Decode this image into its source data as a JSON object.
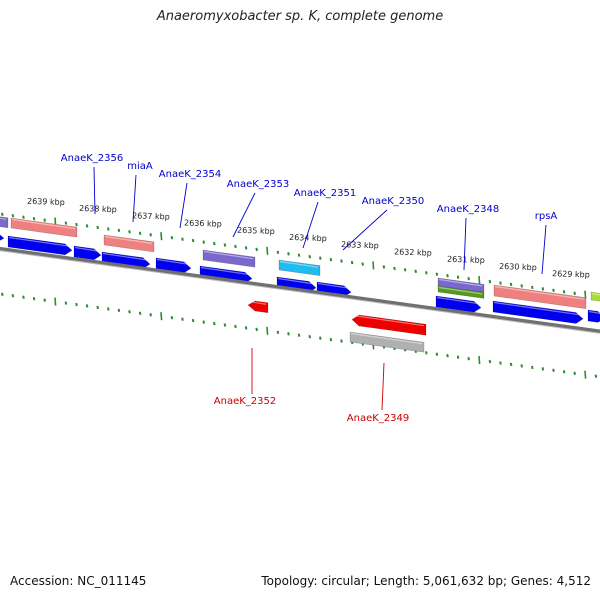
{
  "title": "Anaeromyxobacter sp. K, complete genome",
  "footer": {
    "accession": "Accession: NC_011145",
    "topology": "Topology: circular; Length: 5,061,632 bp; Genes: 4,512"
  },
  "colors": {
    "backbone": "#707070",
    "tick": "#2e8b2e",
    "forward_label": "#0000cc",
    "reverse_label": "#cc0000",
    "cds": "#0000ee",
    "rna_pink": "#ee8080",
    "rna_purple": "#7b68cc",
    "rna_cyan": "#22bbee",
    "rna_green": "#559922",
    "rna_lime": "#aadd33",
    "reverse_cds": "#ee0000",
    "reverse_gray": "#b0b0b0"
  },
  "kbp_labels": [
    "2639 kbp",
    "2638 kbp",
    "2637 kbp",
    "2636 kbp",
    "2635 kbp",
    "2634 kbp",
    "2633 kbp",
    "2632 kbp",
    "2631 kbp",
    "2630 kbp",
    "2629 kbp"
  ],
  "forward_gene_labels": [
    "AnaeK_2356",
    "miaA",
    "AnaeK_2354",
    "AnaeK_2353",
    "AnaeK_2351",
    "AnaeK_2350",
    "AnaeK_2348",
    "rpsA"
  ],
  "reverse_gene_labels": [
    "AnaeK_2352",
    "AnaeK_2349"
  ]
}
